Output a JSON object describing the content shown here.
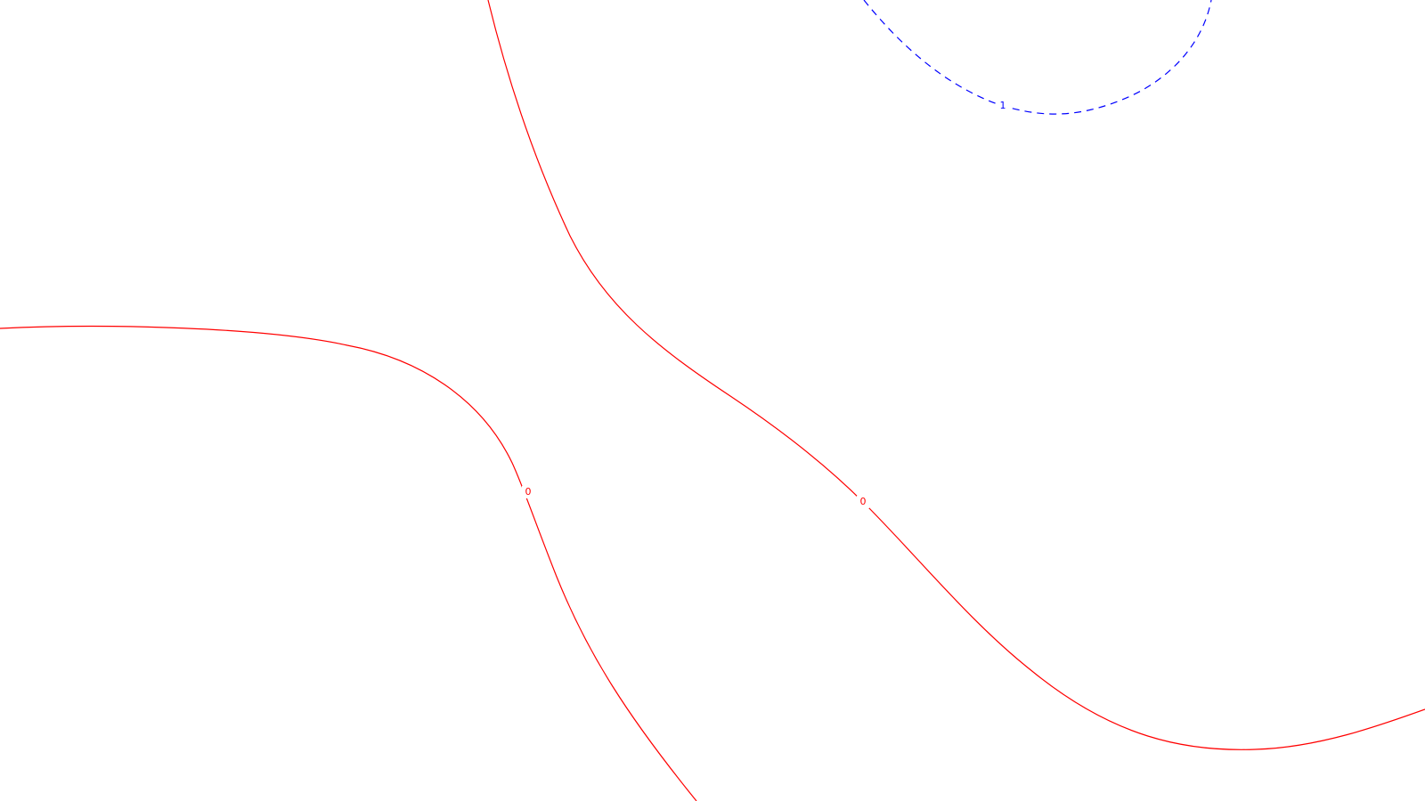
{
  "chart_data": {
    "type": "contour",
    "title": "",
    "xlabel": "",
    "ylabel": "",
    "grid": false,
    "legend": "none",
    "colors": {
      "zero_level": "#ff0000",
      "positive_level": "#0000ff",
      "background": "#ffffff"
    },
    "contours": [
      {
        "id": "zero-contour-left",
        "level": 0,
        "label": "0",
        "color": "#ff0000",
        "dashed": false
      },
      {
        "id": "zero-contour-right",
        "level": 0,
        "label": "0",
        "color": "#ff0000",
        "dashed": false
      },
      {
        "id": "one-contour-top",
        "level": 1,
        "label": "1",
        "color": "#0000ff",
        "dashed": true
      }
    ]
  }
}
